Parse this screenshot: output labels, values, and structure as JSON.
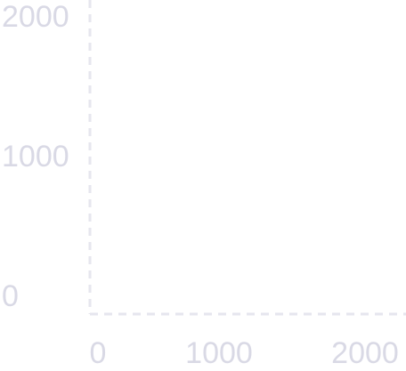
{
  "chart_data": {
    "type": "scatter",
    "title": "",
    "xlabel": "",
    "ylabel": "",
    "x_ticks": [
      "0",
      "1000",
      "2000"
    ],
    "y_ticks": [
      "0",
      "1000",
      "2000"
    ],
    "xlim": [
      0,
      2200
    ],
    "ylim": [
      0,
      2200
    ],
    "series": [],
    "grid": false,
    "axis_style": "dashed",
    "colors": {
      "axis": "#e6e6ee",
      "tick_label": "#d9d9e5",
      "background": "#ffffff"
    }
  }
}
